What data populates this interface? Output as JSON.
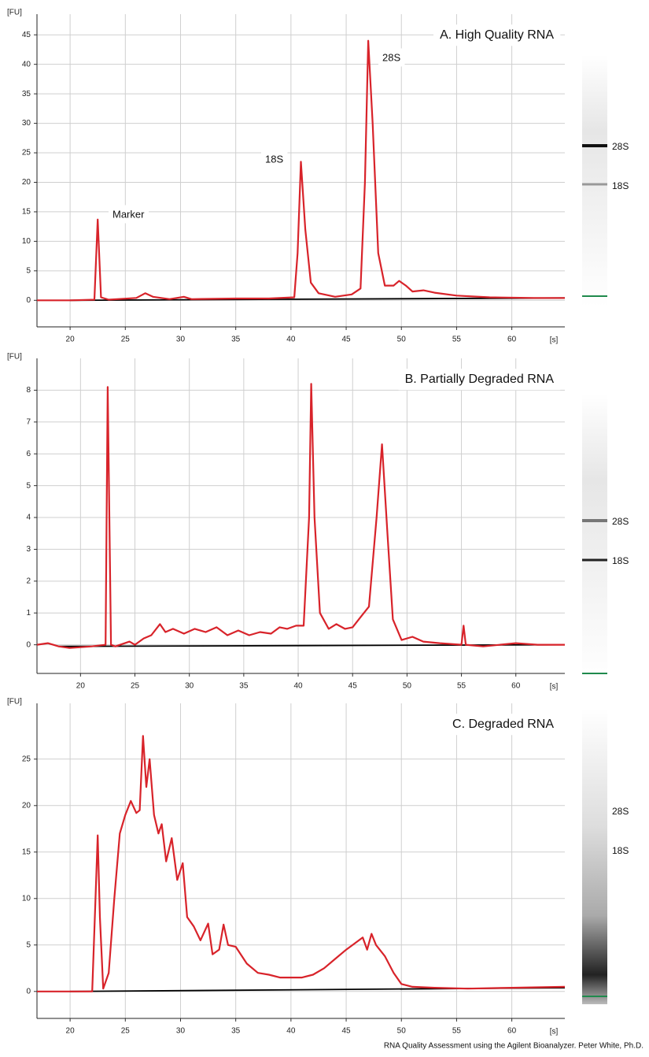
{
  "chart_data": [
    {
      "type": "line",
      "title": "A. High Quality RNA",
      "y_label": "[FU]",
      "x_label": "[s]",
      "xlim": [
        17,
        64.8
      ],
      "ylim": [
        -4.5,
        48.5
      ],
      "xticks": [
        20,
        25,
        30,
        35,
        40,
        45,
        50,
        55,
        60
      ],
      "yticks": [
        0,
        5,
        10,
        15,
        20,
        25,
        30,
        35,
        40,
        45
      ],
      "grid": true,
      "x": [
        17,
        20,
        22.2,
        22.5,
        22.8,
        23.5,
        26,
        26.8,
        27.5,
        29,
        30.3,
        31,
        35,
        38,
        40.3,
        40.6,
        40.9,
        41.3,
        41.8,
        42.5,
        44,
        45.5,
        46.3,
        46.7,
        47,
        47.4,
        47.9,
        48.5,
        49.3,
        49.8,
        50.4,
        51,
        52,
        53,
        55,
        58,
        62,
        64.8
      ],
      "series": [
        {
          "color": "#d8232a",
          "values": [
            0,
            0,
            0.1,
            13.7,
            0.5,
            0.1,
            0.4,
            1.2,
            0.6,
            0.2,
            0.6,
            0.2,
            0.3,
            0.3,
            0.5,
            8,
            23.5,
            12,
            3,
            1.2,
            0.6,
            1,
            2,
            20,
            44,
            30,
            8,
            2.5,
            2.5,
            3.3,
            2.5,
            1.5,
            1.7,
            1.3,
            0.8,
            0.5,
            0.4,
            0.4
          ]
        },
        {
          "color": "#000000",
          "x": [
            20,
            64.8
          ],
          "values": [
            0,
            0.4
          ]
        }
      ],
      "annotations": [
        "Marker",
        "18S",
        "28S"
      ],
      "gel_labels": [
        "28S",
        "18S"
      ]
    },
    {
      "type": "line",
      "title": "B. Partially Degraded RNA",
      "y_label": "[FU]",
      "x_label": "[s]",
      "xlim": [
        16,
        64.5
      ],
      "ylim": [
        -0.9,
        9
      ],
      "xticks": [
        20,
        25,
        30,
        35,
        40,
        45,
        50,
        55,
        60
      ],
      "yticks": [
        0,
        1,
        2,
        3,
        4,
        5,
        6,
        7,
        8
      ],
      "grid": true,
      "x": [
        16,
        17,
        18,
        19,
        21,
        22.3,
        22.5,
        22.8,
        23.2,
        24.5,
        25,
        25.8,
        26.5,
        27.3,
        27.8,
        28.5,
        29.5,
        30.5,
        31.5,
        32.5,
        33.5,
        34.5,
        35.5,
        36.5,
        37.5,
        38.3,
        39,
        39.8,
        40.5,
        41,
        41.2,
        41.5,
        42,
        42.8,
        43.5,
        44.3,
        45,
        45.8,
        46.5,
        47.2,
        47.7,
        48.2,
        48.7,
        49.5,
        50.5,
        51.5,
        53,
        55,
        55.2,
        55.4,
        57,
        60,
        62,
        64.5
      ],
      "series": [
        {
          "color": "#d8232a",
          "values": [
            0,
            0.05,
            -0.05,
            -0.1,
            -0.05,
            0,
            8.1,
            0,
            -0.05,
            0.1,
            0,
            0.2,
            0.3,
            0.65,
            0.4,
            0.5,
            0.35,
            0.5,
            0.4,
            0.55,
            0.3,
            0.45,
            0.3,
            0.4,
            0.35,
            0.55,
            0.5,
            0.6,
            0.6,
            4,
            8.2,
            4,
            1,
            0.5,
            0.65,
            0.5,
            0.55,
            0.9,
            1.2,
            4,
            6.3,
            3.5,
            0.8,
            0.15,
            0.25,
            0.1,
            0.05,
            0,
            0.6,
            0,
            -0.05,
            0.05,
            0,
            0
          ]
        },
        {
          "color": "#000000",
          "x": [
            18,
            64.5
          ],
          "values": [
            -0.05,
            0
          ]
        }
      ],
      "gel_labels": [
        "28S",
        "18S"
      ]
    },
    {
      "type": "line",
      "title": "C. Degraded RNA",
      "y_label": "[FU]",
      "x_label": "[s]",
      "xlim": [
        17,
        64.8
      ],
      "ylim": [
        -2.9,
        31
      ],
      "xticks": [
        20,
        25,
        30,
        35,
        40,
        45,
        50,
        55,
        60
      ],
      "yticks": [
        0,
        5,
        10,
        15,
        20,
        25
      ],
      "grid": true,
      "x": [
        17,
        19,
        20,
        22,
        22.3,
        22.5,
        22.7,
        23,
        23.5,
        24,
        24.5,
        25,
        25.5,
        26,
        26.3,
        26.6,
        26.9,
        27.2,
        27.6,
        28,
        28.3,
        28.7,
        29.2,
        29.7,
        30.2,
        30.6,
        31.2,
        31.8,
        32.5,
        32.9,
        33.5,
        33.9,
        34.3,
        35,
        36,
        37,
        38,
        39,
        41,
        42,
        43,
        44,
        45,
        46.5,
        46.9,
        47.3,
        47.7,
        48.5,
        49.3,
        50,
        51,
        53,
        56,
        60,
        64.8
      ],
      "series": [
        {
          "color": "#d8232a",
          "values": [
            0,
            0,
            0,
            0,
            10,
            16.8,
            8,
            0.3,
            2,
            10,
            17,
            19,
            20.5,
            19.2,
            19.5,
            27.5,
            22,
            25,
            19,
            17,
            18,
            14,
            16.5,
            12,
            13.8,
            8,
            7,
            5.5,
            7.3,
            4,
            4.5,
            7.2,
            5,
            4.8,
            3,
            2,
            1.8,
            1.5,
            1.5,
            1.8,
            2.5,
            3.5,
            4.5,
            5.8,
            4.5,
            6.2,
            5,
            3.8,
            2,
            0.8,
            0.5,
            0.4,
            0.3,
            0.4,
            0.5
          ]
        },
        {
          "color": "#000000",
          "x": [
            20,
            64.8
          ],
          "values": [
            0,
            0.4
          ]
        }
      ],
      "gel_labels": [
        "28S",
        "18S"
      ]
    }
  ],
  "caption": "RNA Quality Assessment using the Agilent Bioanalyzer.  Peter White, Ph.D."
}
